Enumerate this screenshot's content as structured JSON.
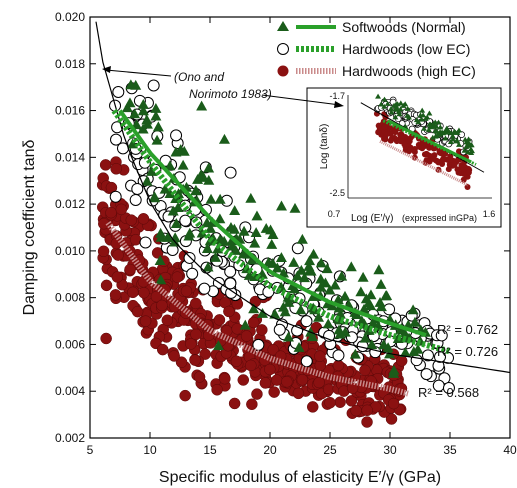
{
  "chart_data": {
    "type": "scatter",
    "xlabel": "Specific modulus of elasticity E′/γ (GPa)",
    "ylabel": "Damping coefficient tanδ",
    "xlim": [
      5,
      40
    ],
    "ylim": [
      0.002,
      0.02
    ],
    "x_ticks": [
      "5",
      "10",
      "15",
      "20",
      "25",
      "30",
      "35",
      "40"
    ],
    "y_ticks": [
      "0.002",
      "0.004",
      "0.006",
      "0.008",
      "0.010",
      "0.012",
      "0.014",
      "0.016",
      "0.018",
      "0.020"
    ],
    "series": [
      {
        "name": "Softwoods (Normal)",
        "marker": "triangle",
        "color": "#1a5c1a",
        "line_color": "#2aa02a",
        "x_range": [
          8,
          33
        ],
        "fit": {
          "x": [
            7.5,
            10,
            15,
            20,
            25,
            30,
            33
          ],
          "y": [
            0.016,
            0.0142,
            0.0114,
            0.0091,
            0.0078,
            0.0069,
            0.0064
          ]
        },
        "r2": "R² = 0.762"
      },
      {
        "name": "Hardwoods (low EC)",
        "marker": "open-circle",
        "color": "#000000",
        "line_color": "#2aa02a",
        "x_range": [
          7,
          35
        ],
        "fit": {
          "x": [
            7,
            10,
            15,
            20,
            25,
            30,
            35
          ],
          "y": [
            0.016,
            0.0138,
            0.0105,
            0.0085,
            0.0072,
            0.0064,
            0.0057
          ]
        },
        "r2": "R² = 0.726"
      },
      {
        "name": "Hardwoods (high EC)",
        "marker": "filled-circle",
        "color": "#8b1111",
        "line_color": "#c98a8a",
        "x_range": [
          6,
          31
        ],
        "fit": {
          "x": [
            6.5,
            10,
            15,
            20,
            25,
            30,
            31.5
          ],
          "y": [
            0.0112,
            0.0087,
            0.0066,
            0.0054,
            0.0046,
            0.0041,
            0.0039
          ]
        },
        "r2": "R² = 0.568"
      }
    ],
    "reference_curve": {
      "label": "(Ono and Norimoto 1983)",
      "x": [
        5.5,
        6,
        8,
        10,
        12,
        15,
        20,
        25,
        30,
        35,
        40
      ],
      "y": [
        0.0198,
        0.0182,
        0.0146,
        0.0121,
        0.0104,
        0.0089,
        0.0072,
        0.0062,
        0.0056,
        0.0052,
        0.0048
      ]
    },
    "legend_position": "top-right",
    "inset": {
      "xlabel_main": "Log (E′/γ)",
      "xlabel_note": "(expressed inGPa)",
      "ylabel": "Log (tanδ)",
      "xlim": [
        0.7,
        1.6
      ],
      "ylim": [
        -2.5,
        -1.7
      ],
      "x_ticks": [
        "0.7",
        "1.6"
      ],
      "y_ticks": [
        "-1.7",
        "-2.5"
      ]
    }
  }
}
